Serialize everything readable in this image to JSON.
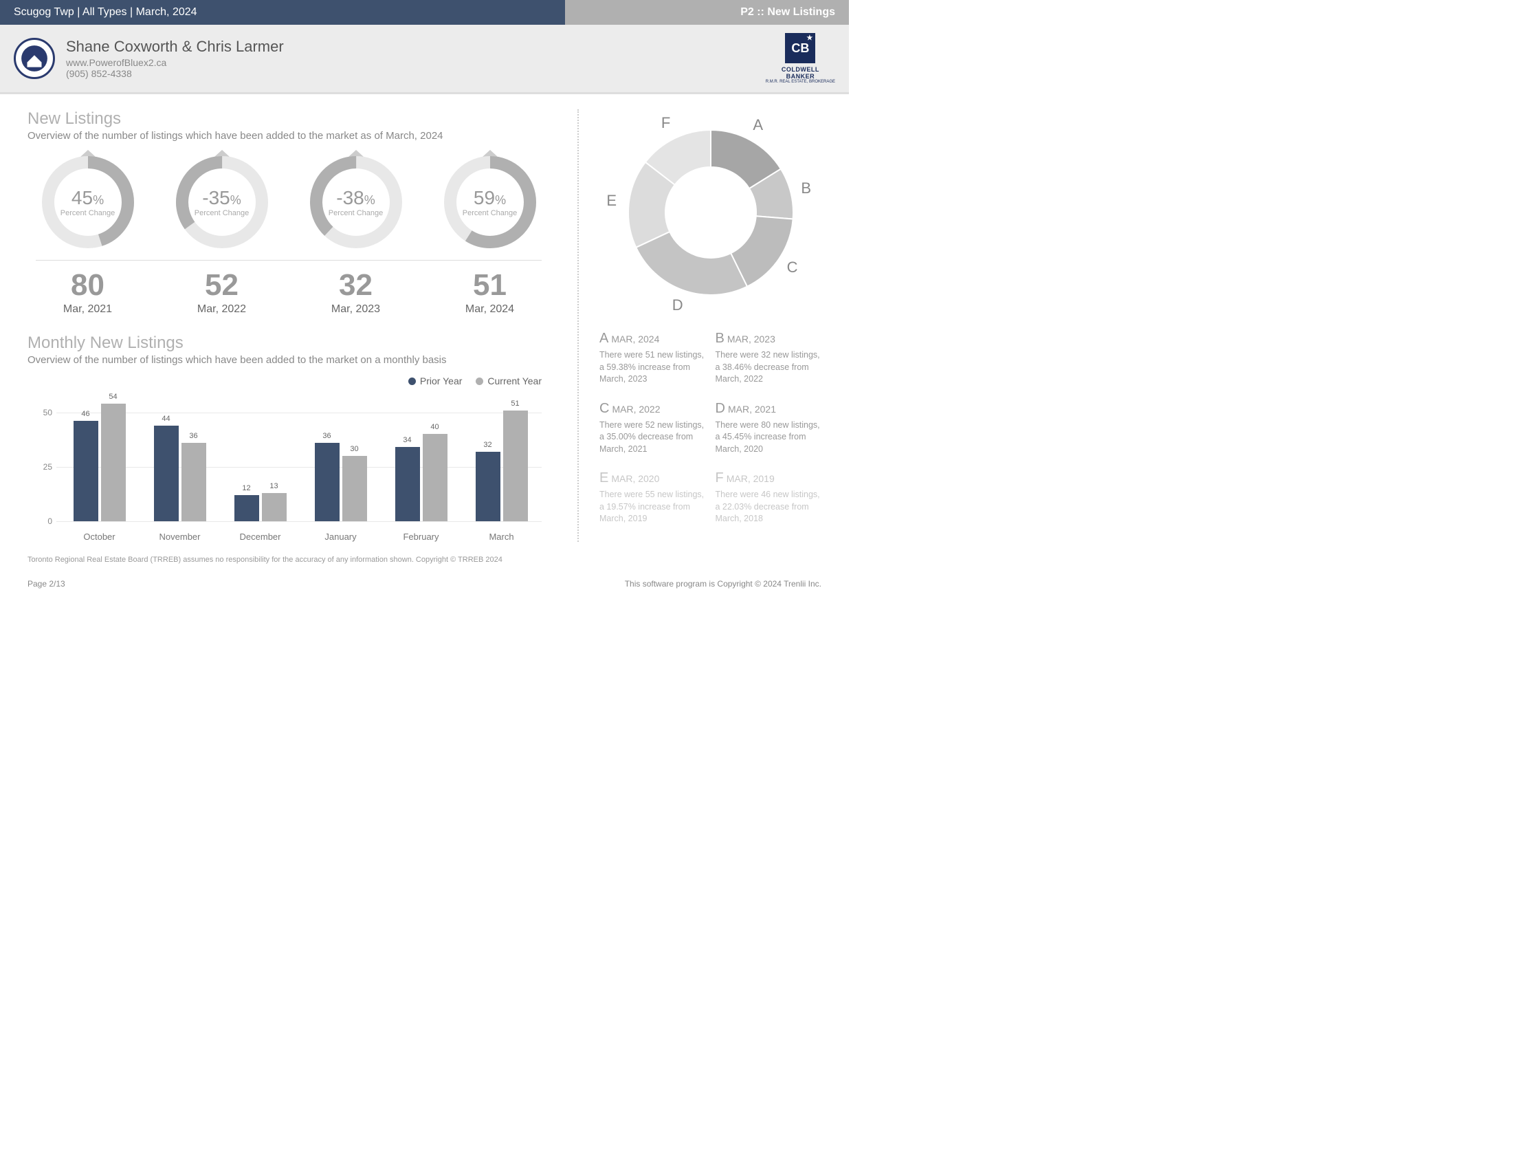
{
  "topbar": {
    "left": "Scugog Twp | All Types | March, 2024",
    "right": "P2 :: New Listings"
  },
  "agent": {
    "name": "Shane Coxworth & Chris Larmer",
    "url": "www.PowerofBluex2.ca",
    "phone": "(905) 852-4338",
    "brand_main": "COLDWELL",
    "brand_sub": "BANKER",
    "brand_tag": "R.M.R. REAL ESTATE, BROKERAGE"
  },
  "new_listings": {
    "title": "New Listings",
    "subtitle": "Overview of the number of listings which have been added to the market as of March, 2024",
    "gauges": [
      {
        "value": "45",
        "suffix": "%",
        "label": "Percent Change",
        "pct": 45,
        "negative": false
      },
      {
        "value": "-35",
        "suffix": "%",
        "label": "Percent Change",
        "pct": 35,
        "negative": true
      },
      {
        "value": "-38",
        "suffix": "%",
        "label": "Percent Change",
        "pct": 38,
        "negative": true
      },
      {
        "value": "59",
        "suffix": "%",
        "label": "Percent Change",
        "pct": 59,
        "negative": false
      }
    ],
    "years": [
      {
        "num": "80",
        "label": "Mar, 2021"
      },
      {
        "num": "52",
        "label": "Mar, 2022"
      },
      {
        "num": "32",
        "label": "Mar, 2023"
      },
      {
        "num": "51",
        "label": "Mar, 2024"
      }
    ]
  },
  "monthly": {
    "title": "Monthly New Listings",
    "subtitle": "Overview of the number of listings which have been added to the market on a monthly basis",
    "legend_prior": "Prior Year",
    "legend_current": "Current Year",
    "color_prior": "#3e516e",
    "color_current": "#b0b0b0",
    "y_ticks": [
      0,
      25,
      50
    ],
    "y_max": 60,
    "months": [
      {
        "name": "October",
        "prior": 46,
        "current": 54
      },
      {
        "name": "November",
        "prior": 44,
        "current": 36
      },
      {
        "name": "December",
        "prior": 12,
        "current": 13
      },
      {
        "name": "January",
        "prior": 36,
        "current": 30
      },
      {
        "name": "February",
        "prior": 34,
        "current": 40
      },
      {
        "name": "March",
        "prior": 32,
        "current": 51
      }
    ]
  },
  "donut": {
    "slices": [
      {
        "letter": "A",
        "value": 51,
        "color": "#a6a6a6"
      },
      {
        "letter": "B",
        "value": 32,
        "color": "#c8c8c8"
      },
      {
        "letter": "C",
        "value": 52,
        "color": "#bcbcbc"
      },
      {
        "letter": "D",
        "value": 80,
        "color": "#c4c4c4"
      },
      {
        "letter": "E",
        "value": 55,
        "color": "#dcdcdc"
      },
      {
        "letter": "F",
        "value": 46,
        "color": "#e4e4e4"
      }
    ],
    "legend": [
      {
        "letter": "A",
        "date": "MAR, 2024",
        "desc": "There were 51 new listings, a 59.38% increase from March, 2023",
        "fade": false
      },
      {
        "letter": "B",
        "date": "MAR, 2023",
        "desc": "There were 32 new listings, a 38.46% decrease from March, 2022",
        "fade": false
      },
      {
        "letter": "C",
        "date": "MAR, 2022",
        "desc": "There were 52 new listings, a 35.00% decrease from March, 2021",
        "fade": false
      },
      {
        "letter": "D",
        "date": "MAR, 2021",
        "desc": "There were 80 new listings, a 45.45% increase from March, 2020",
        "fade": false
      },
      {
        "letter": "E",
        "date": "MAR, 2020",
        "desc": "There were 55 new listings, a 19.57% increase from March, 2019",
        "fade": true
      },
      {
        "letter": "F",
        "date": "MAR, 2019",
        "desc": "There were 46 new listings, a 22.03% decrease from March, 2018",
        "fade": true
      }
    ]
  },
  "footer": {
    "disclaimer": "Toronto Regional Real Estate Board (TRREB) assumes no responsibility for the accuracy of any information shown. Copyright © TRREB 2024",
    "page": "Page 2/13",
    "copyright": "This software program is Copyright © 2024 Trenlii Inc."
  },
  "colors": {
    "gauge_track": "#e8e8e8",
    "gauge_fill": "#b0b0b0"
  }
}
